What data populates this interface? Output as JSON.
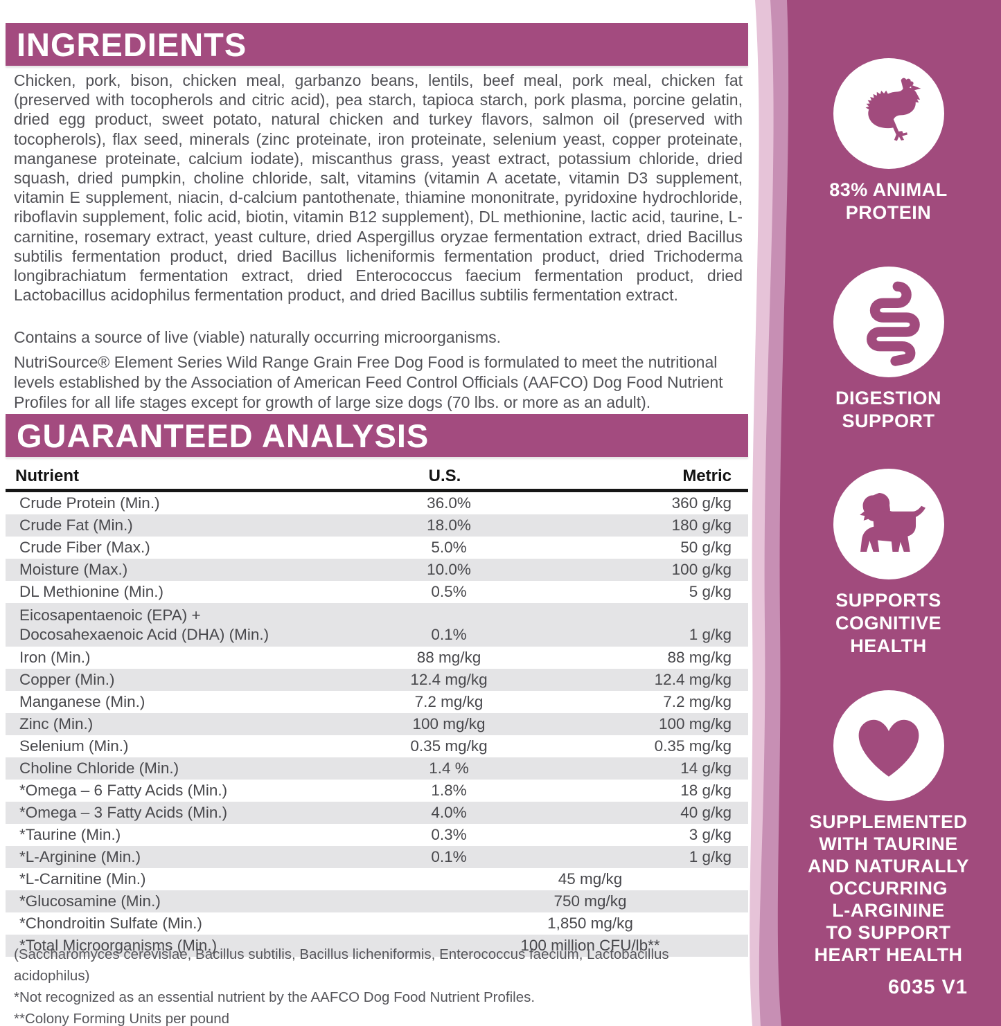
{
  "ingredients": {
    "title": "INGREDIENTS",
    "paragraph": "Chicken, pork, bison, chicken meal, garbanzo beans, lentils, beef meal, pork meal, chicken fat (preserved with tocopherols and citric acid), pea starch, tapioca starch, pork plasma, porcine gelatin, dried egg product, sweet potato, natural chicken and turkey flavors, salmon oil (preserved with tocopherols), flax seed, minerals (zinc proteinate, iron proteinate, selenium yeast, copper proteinate, manganese proteinate, calcium iodate), miscanthus grass, yeast extract, potassium chloride, dried squash, dried pumpkin, choline chloride, salt, vitamins (vitamin A acetate, vitamin D3 supplement, vitamin E supplement, niacin, d-calcium pantothenate, thiamine mononitrate, pyridoxine hydrochloride, riboflavin supplement, folic acid, biotin, vitamin B12 supplement), DL methionine, lactic acid, taurine, L-carnitine, rosemary extract, yeast culture, dried Aspergillus oryzae fermentation extract, dried Bacillus subtilis fermentation product, dried Bacillus licheniformis fermentation product, dried Trichoderma longibrachiatum fermentation extract, dried Enterococcus faecium fermentation product, dried Lactobacillus acidophilus fermentation product, and dried Bacillus subtilis fermentation extract.",
    "contains_note": "Contains a source of live (viable) naturally occurring microorganisms.",
    "aafco_statement": "NutriSource® Element Series Wild Range Grain Free Dog Food is formulated to meet the nutritional levels established by the Association of American Feed Control Officials (AAFCO) Dog Food Nutrient Profiles for all life stages except for growth of large size dogs (70 lbs. or more as an adult)."
  },
  "analysis": {
    "title": "GUARANTEED ANALYSIS",
    "columns": [
      "Nutrient",
      "U.S.",
      "Metric"
    ],
    "rows": [
      {
        "name": "Crude Protein (Min.)",
        "us": "36.0%",
        "metric": "360 g/kg"
      },
      {
        "name": "Crude Fat (Min.)",
        "us": "18.0%",
        "metric": "180 g/kg"
      },
      {
        "name": "Crude Fiber (Max.)",
        "us": "5.0%",
        "metric": "50 g/kg"
      },
      {
        "name": "Moisture (Max.)",
        "us": "10.0%",
        "metric": "100 g/kg"
      },
      {
        "name": "DL Methionine (Min.)",
        "us": "0.5%",
        "metric": "5 g/kg"
      },
      {
        "name": "Eicosapentaenoic (EPA) +\nDocosahexaenoic Acid (DHA) (Min.)",
        "us": "0.1%",
        "metric": "1 g/kg",
        "two_line": true
      },
      {
        "name": "Iron (Min.)",
        "us": "88 mg/kg",
        "metric": "88 mg/kg"
      },
      {
        "name": "Copper (Min.)",
        "us": "12.4 mg/kg",
        "metric": "12.4 mg/kg"
      },
      {
        "name": "Manganese (Min.)",
        "us": "7.2 mg/kg",
        "metric": "7.2 mg/kg"
      },
      {
        "name": "Zinc (Min.)",
        "us": "100 mg/kg",
        "metric": "100 mg/kg"
      },
      {
        "name": "Selenium (Min.)",
        "us": "0.35 mg/kg",
        "metric": "0.35 mg/kg"
      },
      {
        "name": "Choline Chloride (Min.)",
        "us": "1.4 %",
        "metric": "14 g/kg"
      },
      {
        "name": "*Omega – 6 Fatty Acids (Min.)",
        "us": "1.8%",
        "metric": "18 g/kg"
      },
      {
        "name": "*Omega – 3 Fatty Acids (Min.)",
        "us": "4.0%",
        "metric": "40 g/kg"
      },
      {
        "name": "*Taurine (Min.)",
        "us": "0.3%",
        "metric": "3 g/kg"
      },
      {
        "name": "*L-Arginine (Min.)",
        "us": "0.1%",
        "metric": "1 g/kg"
      },
      {
        "name": "*L-Carnitine (Min.)",
        "value": "45 mg/kg",
        "span": true
      },
      {
        "name": "*Glucosamine (Min.)",
        "value": "750 mg/kg",
        "span": true
      },
      {
        "name": "*Chondroitin Sulfate (Min.)",
        "value": "1,850 mg/kg",
        "span": true
      },
      {
        "name": "*Total Microorganisms (Min.)",
        "value": "100 million CFU/lb**",
        "span": true
      }
    ],
    "footnotes": [
      "(Saccharomyces cerevisiae, Bacillus subtilis, Bacillus licheniformis, Enterococcus faecium, Lactobacillus acidophilus)",
      "*Not recognized as an essential nutrient by the AAFCO Dog Food Nutrient Profiles.",
      "**Colony Forming Units per pound"
    ]
  },
  "sidebar": {
    "sections": [
      {
        "icon": "chicken-icon",
        "label": "83% ANIMAL\nPROTEIN"
      },
      {
        "icon": "intestines-icon",
        "label": "DIGESTION\nSUPPORT"
      },
      {
        "icon": "puppy-icon",
        "label": "SUPPORTS\nCOGNITIVE\nHEALTH"
      },
      {
        "icon": "heart-icon",
        "label": "SUPPLEMENTED\nWITH TAURINE\nAND NATURALLY\nOCCURRING\nL-ARGININE\nTO SUPPORT\nHEART HEALTH"
      }
    ],
    "code": "6035 V1"
  },
  "colors": {
    "brand_purple": "#a34b7f",
    "sidebar_purple": "#a14b7d",
    "bag_highlight_light": "#e6c3d8",
    "bag_highlight_mid": "#c78fb4",
    "stripe_gray": "#e4e4e6"
  }
}
